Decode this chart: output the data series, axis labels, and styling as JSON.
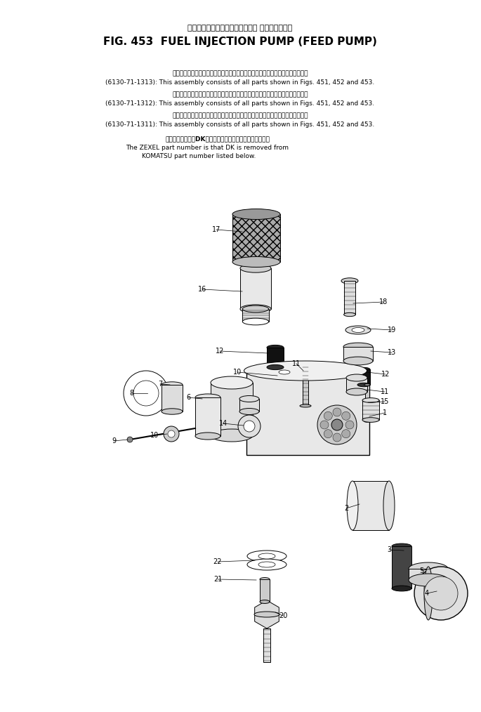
{
  "bg_color": "#ffffff",
  "title_jp": "フェエルインジェクションポンプ フィードポンプ",
  "title_en": "FIG. 453  FUEL INJECTION PUMP (FEED PUMP)",
  "note1_jp": "このアセンブリの構成部品は第４５１，４５２図および第４５３図を含みます．",
  "note1_en": "(6130-71-1313): This assembly consists of all parts shown in Figs. 451, 452 and 453.",
  "note2_jp": "このアセンブリの構成部品は第４５１，４５２図および第４５３図を含みます．",
  "note2_en": "(6130-71-1312): This assembly consists of all parts shown in Figs. 451, 452 and 453.",
  "note3_jp": "このアセンブリの構成部品は第４５１，４５２図および第４５３図を含みます．",
  "note3_en": "(6130-71-1311): This assembly consists of all parts shown in Figs. 451, 452 and 453.",
  "zexel_jp": "品番のメーカ記号DKを除いたものがゼクセルの品番です．",
  "zexel_en1": "The ZEXEL part number is that DK is removed from",
  "zexel_en2": "KOMATSU part number listed below.",
  "fig_width": 685,
  "fig_height": 1014,
  "dpi": 100
}
